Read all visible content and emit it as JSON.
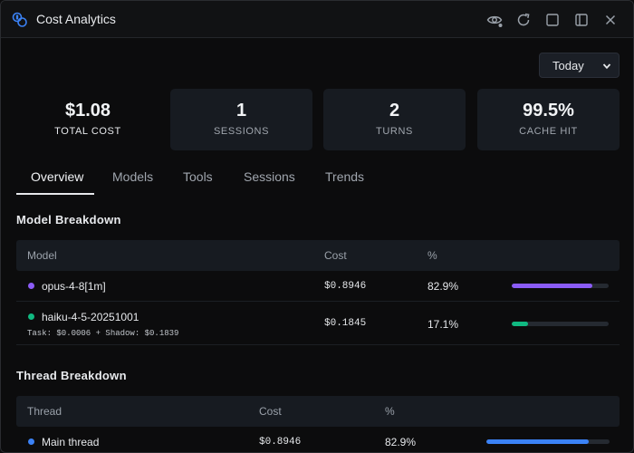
{
  "window": {
    "title": "Cost Analytics",
    "accent": "#3b82f6"
  },
  "toolbar": {
    "icons": [
      "eye-icon",
      "refresh-icon",
      "square-icon",
      "sidebar-icon",
      "close-icon"
    ]
  },
  "period": {
    "selected": "Today"
  },
  "stats": [
    {
      "value": "$1.08",
      "label": "TOTAL COST"
    },
    {
      "value": "1",
      "label": "SESSIONS"
    },
    {
      "value": "2",
      "label": "TURNS"
    },
    {
      "value": "99.5%",
      "label": "CACHE HIT"
    }
  ],
  "tabs": [
    "Overview",
    "Models",
    "Tools",
    "Sessions",
    "Trends"
  ],
  "active_tab": "Overview",
  "model_breakdown": {
    "title": "Model Breakdown",
    "headers": [
      "Model",
      "Cost",
      "%"
    ],
    "rows": [
      {
        "name": "opus-4-8[1m]",
        "cost": "$0.8946",
        "pct": "82.9%",
        "fraction": 0.829,
        "color": "#8b5cf6",
        "detail": ""
      },
      {
        "name": "haiku-4-5-20251001",
        "cost": "$0.1845",
        "pct": "17.1%",
        "fraction": 0.171,
        "color": "#10b981",
        "detail": "Task: $0.0006 + Shadow: $0.1839"
      }
    ]
  },
  "thread_breakdown": {
    "title": "Thread Breakdown",
    "headers": [
      "Thread",
      "Cost",
      "%"
    ],
    "rows": [
      {
        "name": "Main thread",
        "cost": "$0.8946",
        "pct": "82.9%",
        "fraction": 0.829,
        "color": "#3b82f6"
      }
    ]
  }
}
